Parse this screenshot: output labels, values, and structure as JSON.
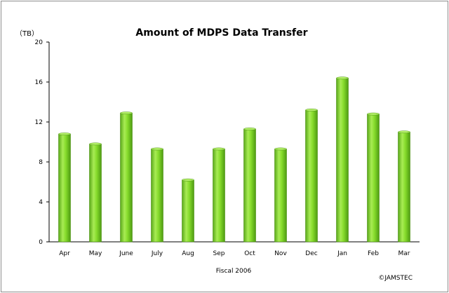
{
  "chart_data": {
    "type": "bar",
    "title": "Amount of MDPS Data Transfer",
    "unit_label": "（TB）",
    "xlabel": "Fiscal 2006",
    "ylabel": "",
    "copyright": "©JAMSTEC",
    "categories": [
      "Apr",
      "May",
      "June",
      "July",
      "Aug",
      "Sep",
      "Oct",
      "Nov",
      "Dec",
      "Jan",
      "Feb",
      "Mar"
    ],
    "values": [
      10.8,
      9.8,
      12.9,
      9.3,
      6.2,
      9.3,
      11.3,
      9.3,
      13.2,
      16.4,
      12.8,
      11.0
    ],
    "ylim": [
      0,
      20
    ],
    "yticks": [
      "0",
      "4",
      "8",
      "12",
      "16",
      "20"
    ],
    "grid": false,
    "legend": "none",
    "colors": {
      "bar": "#7ed321",
      "bar_dark": "#4a8f12",
      "bar_light": "#b6f26a",
      "axis": "#000000"
    }
  }
}
